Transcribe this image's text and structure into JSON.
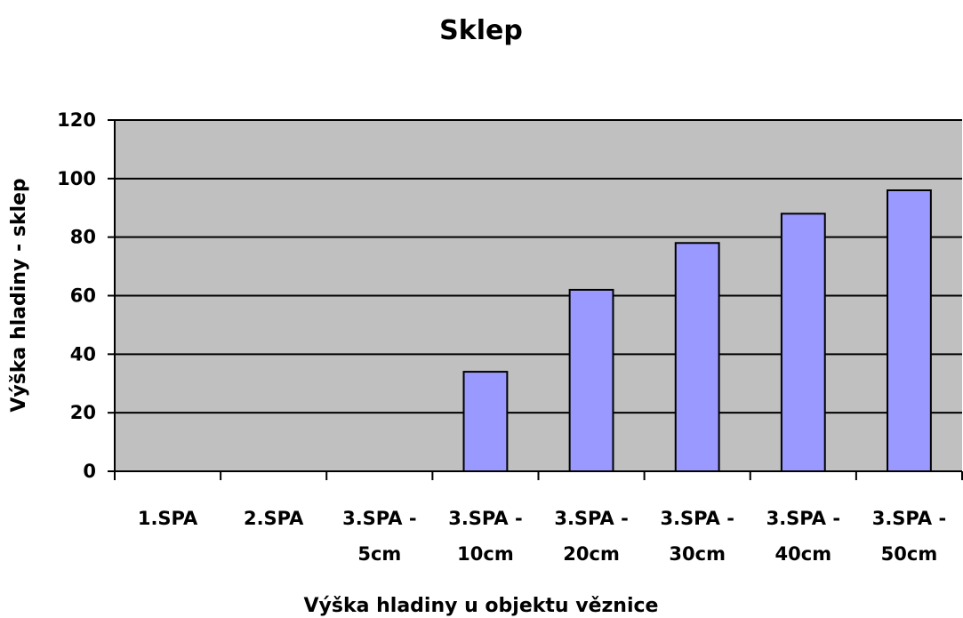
{
  "chart_data": {
    "type": "bar",
    "title": "Sklep",
    "xlabel": "Výška hladiny u objektu věznice",
    "ylabel": "Výška hladiny - sklep",
    "ylim": [
      0,
      120
    ],
    "yticks": [
      0,
      20,
      40,
      60,
      80,
      100,
      120
    ],
    "grid": true,
    "categories": [
      [
        "1.SPA"
      ],
      [
        "2.SPA"
      ],
      [
        "3.SPA -",
        "5cm"
      ],
      [
        "3.SPA -",
        "10cm"
      ],
      [
        "3.SPA -",
        "20cm"
      ],
      [
        "3.SPA -",
        "30cm"
      ],
      [
        "3.SPA -",
        "40cm"
      ],
      [
        "3.SPA -",
        "50cm"
      ]
    ],
    "values": [
      0,
      0,
      0,
      34,
      62,
      78,
      88,
      96
    ],
    "colors": {
      "plot_bg": "#c0c0c0",
      "bar_fill": "#9999ff",
      "bar_stroke": "#000000",
      "grid": "#000000"
    }
  }
}
